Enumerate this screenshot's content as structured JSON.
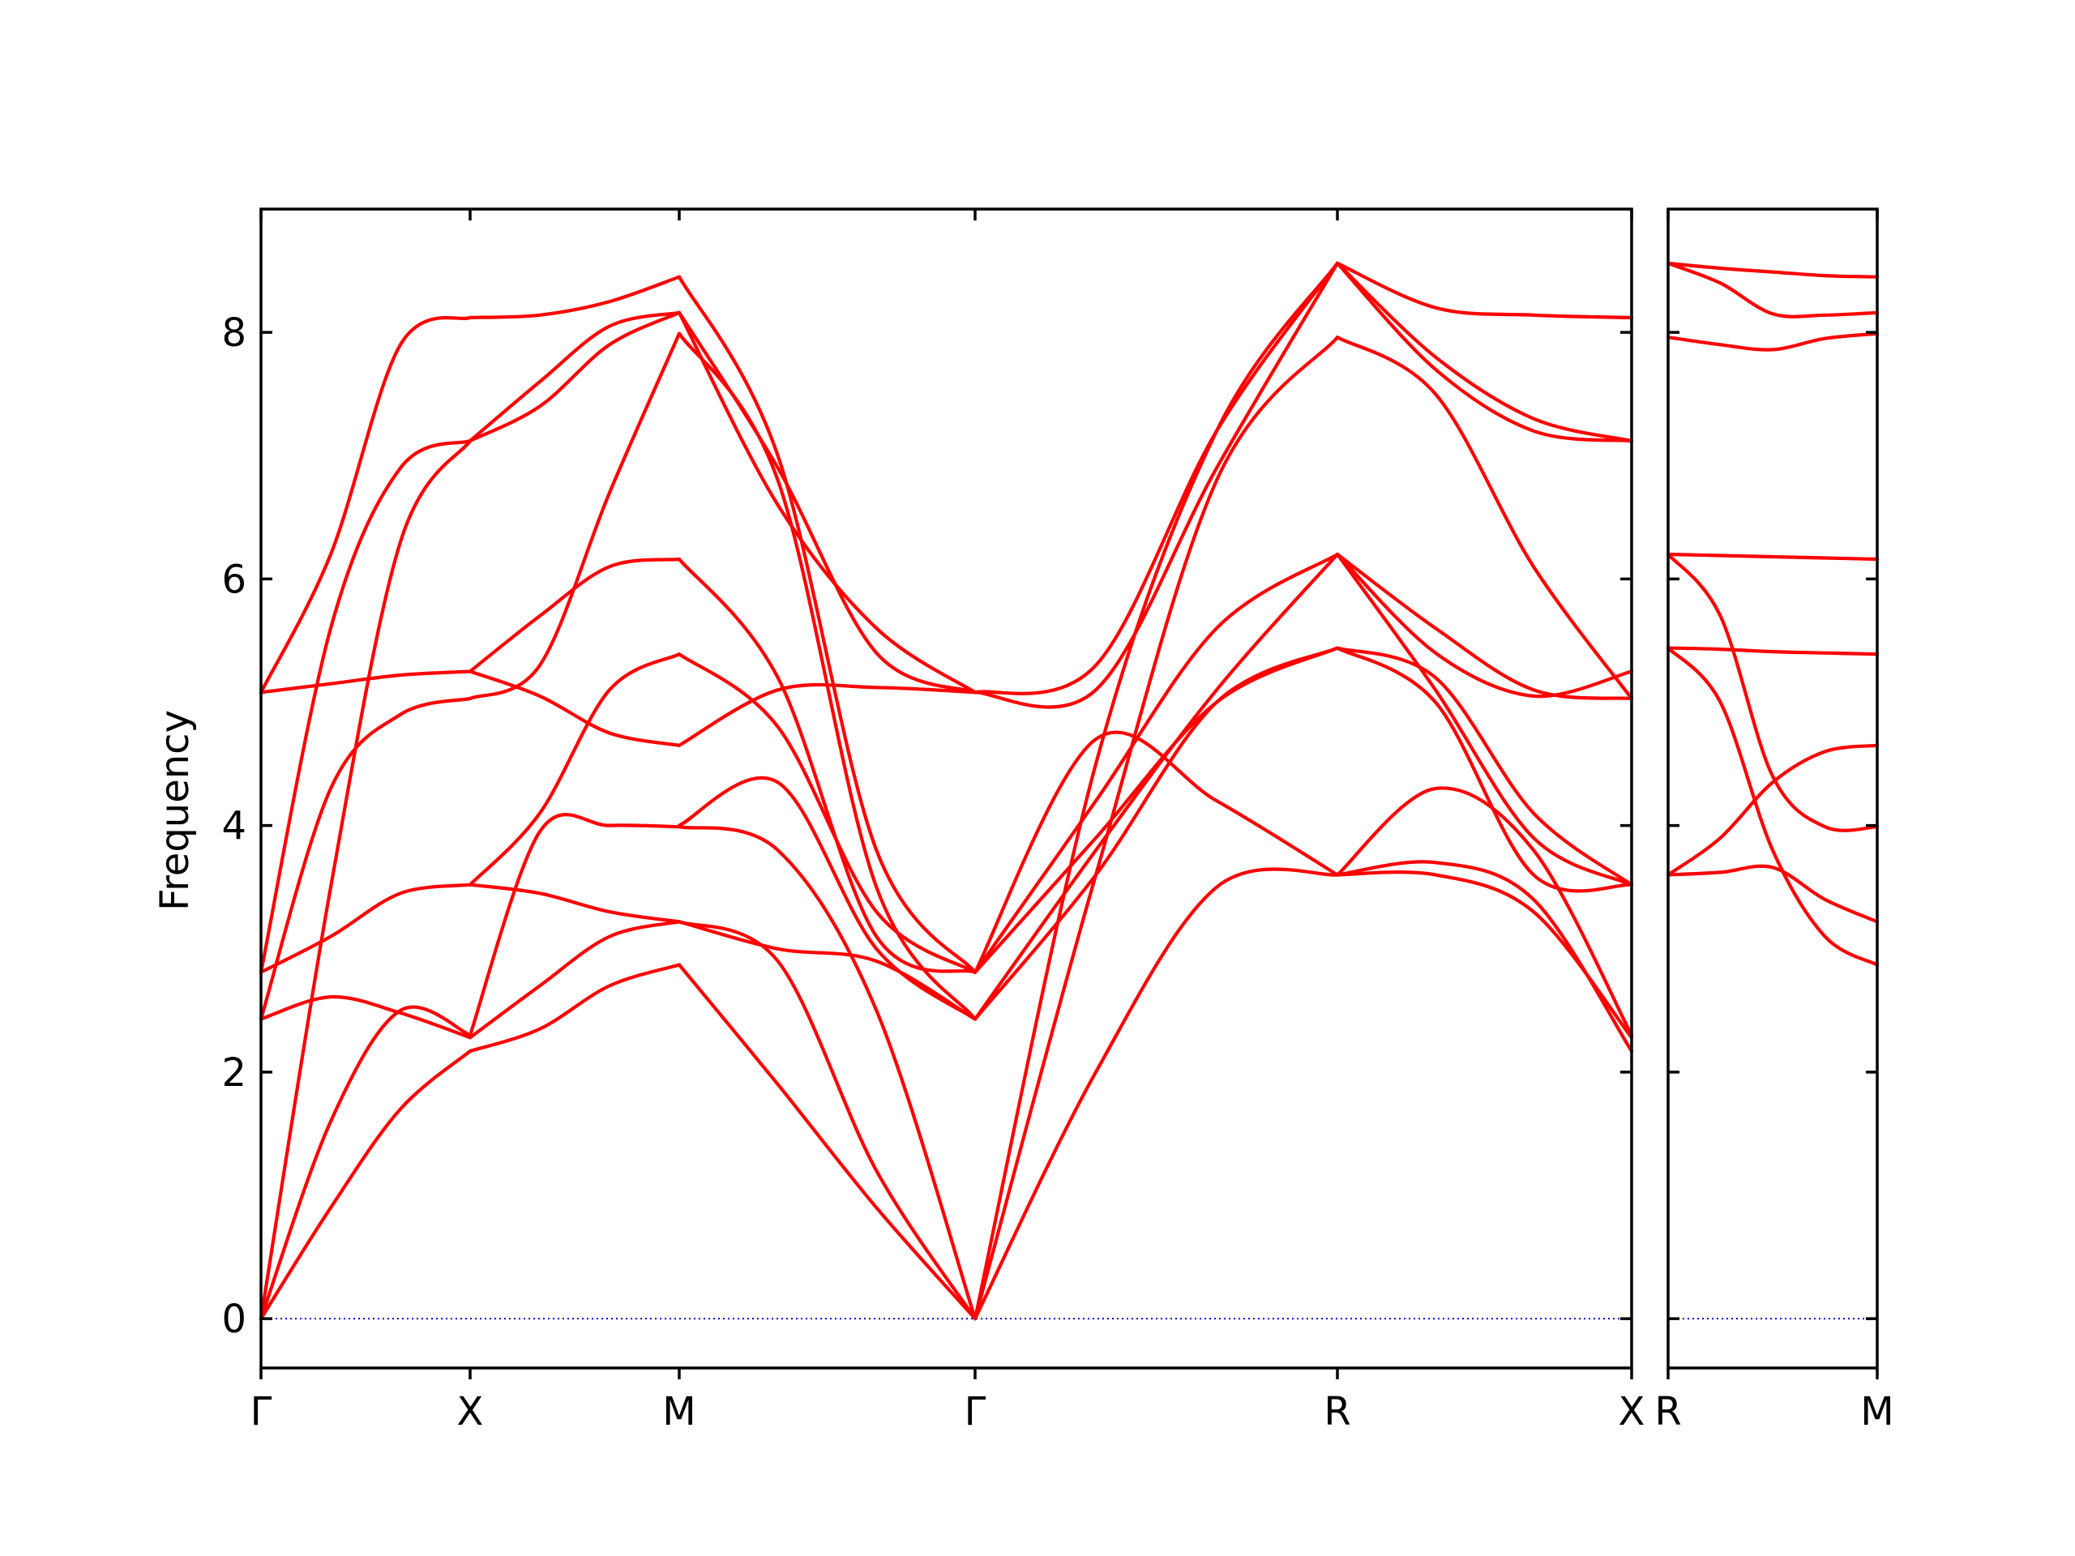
{
  "chart_data": {
    "type": "line",
    "ylabel": "Frequency",
    "ylim": [
      -0.4,
      9.0
    ],
    "yticks": [
      "0",
      "2",
      "4",
      "6",
      "8"
    ],
    "grid": false,
    "colors": {
      "bands": "#ff0000",
      "zero_line": "#0000cc",
      "axes": "#000000"
    },
    "panels": [
      {
        "name": "main",
        "path_labels": [
          "Γ",
          "X",
          "M",
          "Γ",
          "R",
          "X"
        ],
        "segments": [
          {
            "from": "Γ",
            "to": "X",
            "bands": [
              [
                0.0,
                0.9,
                1.7,
                2.17
              ],
              [
                0.0,
                1.6,
                2.5,
                2.3
              ],
              [
                0.0,
                3.5,
                6.3,
                7.12
              ],
              [
                2.43,
                2.61,
                2.48,
                2.28
              ],
              [
                2.43,
                4.3,
                4.9,
                5.03
              ],
              [
                2.81,
                3.1,
                3.45,
                3.52
              ],
              [
                2.81,
                5.6,
                6.9,
                7.12
              ],
              [
                5.08,
                5.15,
                5.22,
                5.25
              ],
              [
                5.08,
                6.2,
                7.9,
                8.12
              ]
            ]
          },
          {
            "from": "X",
            "to": "M",
            "bands": [
              [
                2.17,
                2.35,
                2.7,
                2.87
              ],
              [
                2.28,
                2.7,
                3.1,
                3.22
              ],
              [
                2.3,
                3.95,
                4.0,
                3.99
              ],
              [
                3.52,
                3.45,
                3.3,
                3.22
              ],
              [
                3.52,
                4.1,
                5.1,
                5.39
              ],
              [
                5.25,
                5.05,
                4.75,
                4.65
              ],
              [
                5.03,
                5.3,
                6.7,
                7.99
              ],
              [
                7.12,
                7.4,
                7.9,
                8.16
              ],
              [
                7.12,
                7.6,
                8.05,
                8.16
              ],
              [
                8.12,
                8.14,
                8.25,
                8.45
              ],
              [
                5.25,
                5.7,
                6.1,
                6.16
              ]
            ]
          },
          {
            "from": "M",
            "to": "Γ",
            "bands": [
              [
                2.87,
                1.9,
                0.9,
                0.0
              ],
              [
                3.22,
                2.9,
                1.2,
                0.0
              ],
              [
                3.99,
                3.8,
                2.5,
                0.0
              ],
              [
                3.22,
                3.0,
                2.9,
                2.43
              ],
              [
                4.0,
                4.35,
                3.0,
                2.43
              ],
              [
                5.39,
                4.8,
                3.3,
                2.81
              ],
              [
                6.16,
                5.2,
                3.1,
                2.81
              ],
              [
                4.65,
                5.1,
                5.12,
                5.08
              ],
              [
                7.99,
                6.8,
                3.5,
                2.43
              ],
              [
                8.16,
                6.6,
                5.6,
                5.08
              ],
              [
                8.16,
                6.9,
                5.4,
                5.08
              ],
              [
                8.45,
                7.0,
                3.8,
                2.81
              ]
            ]
          },
          {
            "from": "Γ",
            "to": "R",
            "bands": [
              [
                0.0,
                2.0,
                3.5,
                3.6
              ],
              [
                0.0,
                4.5,
                7.2,
                8.56
              ],
              [
                0.0,
                3.6,
                6.8,
                7.96
              ],
              [
                2.43,
                3.8,
                5.1,
                6.2
              ],
              [
                2.43,
                3.6,
                5.0,
                5.44
              ],
              [
                2.81,
                4.2,
                5.6,
                6.2
              ],
              [
                2.81,
                4.7,
                4.2,
                3.6
              ],
              [
                5.08,
                5.3,
                7.2,
                8.56
              ],
              [
                5.08,
                5.1,
                6.9,
                8.56
              ],
              [
                2.81,
                3.9,
                5.0,
                5.44
              ]
            ]
          },
          {
            "from": "R",
            "to": "X",
            "bands": [
              [
                3.6,
                3.7,
                3.4,
                2.17
              ],
              [
                3.6,
                3.6,
                3.3,
                2.28
              ],
              [
                3.6,
                4.3,
                3.8,
                2.3
              ],
              [
                5.44,
                5.0,
                3.6,
                3.52
              ],
              [
                5.44,
                5.2,
                4.1,
                3.52
              ],
              [
                6.2,
                5.6,
                5.1,
                5.03
              ],
              [
                6.2,
                5.4,
                5.05,
                5.25
              ],
              [
                7.96,
                7.5,
                6.1,
                5.03
              ],
              [
                8.56,
                7.8,
                7.3,
                7.12
              ],
              [
                8.56,
                7.7,
                7.2,
                7.12
              ],
              [
                8.56,
                8.2,
                8.14,
                8.12
              ],
              [
                6.2,
                5.1,
                3.9,
                3.52
              ]
            ]
          }
        ]
      },
      {
        "name": "side",
        "path_labels": [
          "R",
          "M"
        ],
        "segments": [
          {
            "from": "R",
            "to": "M",
            "bands": [
              [
                3.6,
                3.62,
                3.66,
                3.4,
                3.22
              ],
              [
                3.6,
                3.9,
                4.35,
                4.6,
                4.65
              ],
              [
                5.44,
                5.0,
                3.8,
                3.1,
                2.87
              ],
              [
                5.44,
                5.43,
                5.41,
                5.4,
                5.39
              ],
              [
                6.2,
                5.7,
                4.4,
                3.99,
                3.99
              ],
              [
                6.2,
                6.19,
                6.18,
                6.17,
                6.16
              ],
              [
                7.96,
                7.9,
                7.86,
                7.95,
                7.99
              ],
              [
                8.56,
                8.4,
                8.15,
                8.14,
                8.16
              ],
              [
                8.56,
                8.52,
                8.49,
                8.46,
                8.45
              ]
            ]
          }
        ]
      }
    ]
  }
}
